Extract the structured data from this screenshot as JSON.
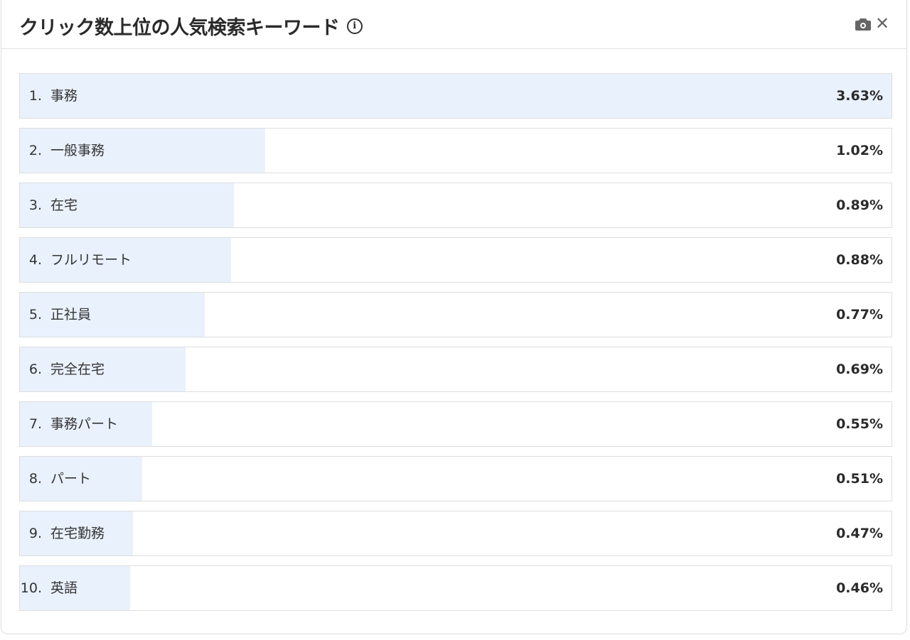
{
  "header": {
    "title": "クリック数上位の人気検索キーワード",
    "info_icon": "info-icon",
    "camera_icon": "camera-icon",
    "close_icon": "close-icon",
    "close_glyph": "✕"
  },
  "bar_color": "#e9f1fd",
  "keywords": [
    {
      "rank": "1.",
      "keyword": "事務",
      "value": 3.63,
      "percent": "3.63%"
    },
    {
      "rank": "2.",
      "keyword": "一般事務",
      "value": 1.02,
      "percent": "1.02%"
    },
    {
      "rank": "3.",
      "keyword": "在宅",
      "value": 0.89,
      "percent": "0.89%"
    },
    {
      "rank": "4.",
      "keyword": "フルリモート",
      "value": 0.88,
      "percent": "0.88%"
    },
    {
      "rank": "5.",
      "keyword": "正社員",
      "value": 0.77,
      "percent": "0.77%"
    },
    {
      "rank": "6.",
      "keyword": "完全在宅",
      "value": 0.69,
      "percent": "0.69%"
    },
    {
      "rank": "7.",
      "keyword": "事務パート",
      "value": 0.55,
      "percent": "0.55%"
    },
    {
      "rank": "8.",
      "keyword": "パート",
      "value": 0.51,
      "percent": "0.51%"
    },
    {
      "rank": "9.",
      "keyword": "在宅勤務",
      "value": 0.47,
      "percent": "0.47%"
    },
    {
      "rank": "10.",
      "keyword": "英語",
      "value": 0.46,
      "percent": "0.46%"
    }
  ]
}
